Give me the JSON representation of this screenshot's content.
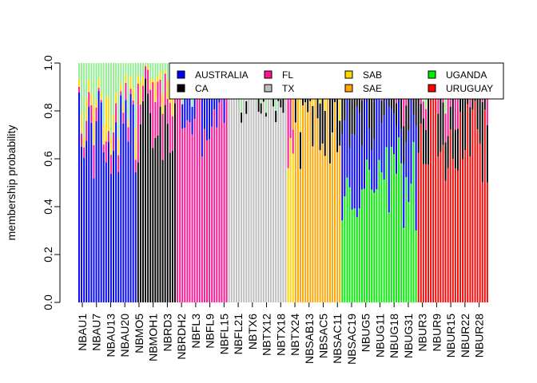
{
  "chart_data": {
    "type": "bar",
    "stacked": true,
    "title": "",
    "xlabel": "",
    "ylabel": "membership probability",
    "ylim": [
      0,
      1
    ],
    "y_ticks": [
      "0.0",
      "0.2",
      "0.4",
      "0.6",
      "0.8",
      "1.0"
    ],
    "x_tick_labels": [
      "NBAU1",
      "NBAU7",
      "NBAU13",
      "NBAU20",
      "NBMO5",
      "NBMOH1",
      "NBRD3",
      "NBRDH2",
      "NBFL3",
      "NBFL9",
      "NBFL15",
      "NBFL21",
      "NBTX6",
      "NBTX12",
      "NBTX18",
      "NBTX24",
      "NBSAB13",
      "NBSAC5",
      "NBSAC11",
      "NBSAC19",
      "NBUG5",
      "NBUG11",
      "NBUG18",
      "NBUG31",
      "NBUR3",
      "NBUR9",
      "NBUR15",
      "NBUR22",
      "NBUR28"
    ],
    "legend": {
      "position": "top-right",
      "entries": [
        {
          "label": "AUSTRALIA",
          "color": "#0000FF"
        },
        {
          "label": "CA",
          "color": "#000000"
        },
        {
          "label": "FL",
          "color": "#FF1493"
        },
        {
          "label": "TX",
          "color": "#BEBEBE"
        },
        {
          "label": "SAB",
          "color": "#FFD700"
        },
        {
          "label": "SAE",
          "color": "#FFA500"
        },
        {
          "label": "UGANDA",
          "color": "#00EE00"
        },
        {
          "label": "URUGUAY",
          "color": "#FF0000"
        }
      ]
    },
    "colors": {
      "AUSTRALIA": "#0000FF",
      "CA": "#000000",
      "FL": "#FF1493",
      "TX": "#BEBEBE",
      "SAB": "#FFD700",
      "SAE": "#FFA500",
      "UGANDA": "#00EE00",
      "URUGUAY": "#FF0000",
      "UGANDA_light": "#90EE90",
      "FL_light": "#FF8C94"
    },
    "groups": [
      {
        "name": "AUSTRALIA",
        "n": 24,
        "dominant": "AUSTRALIA",
        "main_range": [
          0.5,
          0.9
        ],
        "secondary": [
          "UGANDA",
          "SAB",
          "FL"
        ]
      },
      {
        "name": "CA",
        "n": 16,
        "dominant": "CA",
        "main_range": [
          0.55,
          0.95
        ],
        "secondary": [
          "FL",
          "UGANDA",
          "SAB"
        ]
      },
      {
        "name": "FL",
        "n": 21,
        "dominant": "FL",
        "main_range": [
          0.6,
          1.0
        ],
        "secondary": [
          "AUSTRALIA",
          "UGANDA"
        ]
      },
      {
        "name": "TX",
        "n": 24,
        "dominant": "TX",
        "main_range": [
          0.75,
          0.99
        ],
        "secondary": [
          "URUGUAY",
          "UGANDA",
          "CA"
        ]
      },
      {
        "name": "SAB",
        "n": 3,
        "dominant": "SAB",
        "main_range": [
          0.5,
          0.8
        ],
        "secondary": [
          "SAE",
          "FL"
        ]
      },
      {
        "name": "SAE",
        "n": 19,
        "dominant": "SAE",
        "main_range": [
          0.55,
          0.95
        ],
        "secondary": [
          "CA",
          "SAB"
        ]
      },
      {
        "name": "UGANDA",
        "n": 31,
        "dominant": "UGANDA",
        "main_range": [
          0.3,
          0.7
        ],
        "secondary": [
          "AUSTRALIA",
          "CA",
          "FL"
        ]
      },
      {
        "name": "URUGUAY",
        "n": 29,
        "dominant": "URUGUAY",
        "main_range": [
          0.5,
          0.9
        ],
        "secondary": [
          "CA",
          "FL",
          "UGANDA"
        ]
      }
    ]
  }
}
